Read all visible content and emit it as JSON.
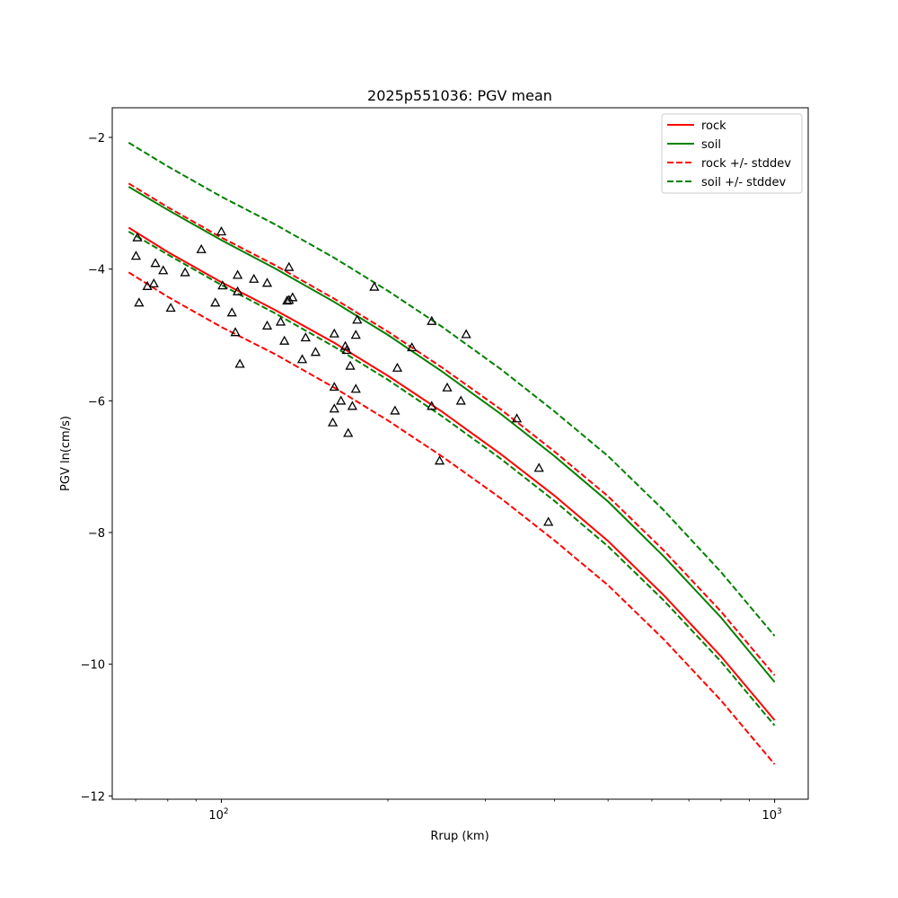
{
  "chart_data": {
    "type": "scatter",
    "title": "2025p551036: PGV mean",
    "xlabel": "Rrup (km)",
    "ylabel": "PGV ln(cm/s)",
    "xscale": "log",
    "xlim": [
      63.5,
      1150
    ],
    "ylim": [
      -12.05,
      -1.55
    ],
    "x_ticks": [
      {
        "value": 100,
        "base": "10",
        "exp": "2"
      },
      {
        "value": 1000,
        "base": "10",
        "exp": "3"
      }
    ],
    "y_ticks": [
      {
        "value": -2,
        "label": "−2"
      },
      {
        "value": -4,
        "label": "−4"
      },
      {
        "value": -6,
        "label": "−6"
      },
      {
        "value": -8,
        "label": "−8"
      },
      {
        "value": -10,
        "label": "−10"
      },
      {
        "value": -12,
        "label": "−12"
      }
    ],
    "grid": false,
    "legend_position": "top-right",
    "colors": {
      "rock": "#ff0000",
      "soil": "#008000",
      "points": "#000000"
    },
    "series": [
      {
        "name": "rock",
        "style": "solid",
        "color": "#ff0000",
        "x": [
          68,
          80,
          100,
          125,
          160,
          200,
          250,
          320,
          400,
          500,
          630,
          800,
          1000
        ],
        "y": [
          -3.37,
          -3.74,
          -4.2,
          -4.62,
          -5.12,
          -5.62,
          -6.16,
          -6.81,
          -7.44,
          -8.13,
          -8.95,
          -9.88,
          -10.85
        ]
      },
      {
        "name": "soil",
        "style": "solid",
        "color": "#008000",
        "x": [
          68,
          80,
          100,
          125,
          160,
          200,
          250,
          320,
          400,
          500,
          630,
          800,
          1000
        ],
        "y": [
          -2.75,
          -3.1,
          -3.56,
          -3.99,
          -4.5,
          -5.0,
          -5.55,
          -6.2,
          -6.84,
          -7.53,
          -8.36,
          -9.29,
          -10.27
        ]
      },
      {
        "name": "rock +/- stddev",
        "style": "dashed",
        "color": "#ff0000",
        "x": [
          68,
          80,
          100,
          125,
          160,
          200,
          250,
          320,
          400,
          500,
          630,
          800,
          1000
        ],
        "y": [
          -2.7,
          -3.06,
          -3.52,
          -3.94,
          -4.45,
          -4.95,
          -5.49,
          -6.13,
          -6.77,
          -7.45,
          -8.27,
          -9.2,
          -10.17
        ]
      },
      {
        "name": "rock +/- stddev lower",
        "style": "dashed",
        "color": "#ff0000",
        "x": [
          68,
          80,
          100,
          125,
          160,
          200,
          250,
          320,
          400,
          500,
          630,
          800,
          1000
        ],
        "y": [
          -4.05,
          -4.42,
          -4.88,
          -5.29,
          -5.8,
          -6.3,
          -6.84,
          -7.48,
          -8.12,
          -8.8,
          -9.62,
          -10.55,
          -11.52
        ]
      },
      {
        "name": "soil +/- stddev",
        "style": "dashed",
        "color": "#008000",
        "x": [
          68,
          80,
          100,
          125,
          160,
          200,
          250,
          320,
          400,
          500,
          630,
          800,
          1000
        ],
        "y": [
          -2.08,
          -2.44,
          -2.9,
          -3.32,
          -3.83,
          -4.33,
          -4.87,
          -5.52,
          -6.16,
          -6.84,
          -7.66,
          -8.6,
          -9.57
        ]
      },
      {
        "name": "soil +/- stddev lower",
        "style": "dashed",
        "color": "#008000",
        "x": [
          68,
          80,
          100,
          125,
          160,
          200,
          250,
          320,
          400,
          500,
          630,
          800,
          1000
        ],
        "y": [
          -3.43,
          -3.78,
          -4.24,
          -4.67,
          -5.18,
          -5.68,
          -6.23,
          -6.88,
          -7.52,
          -8.21,
          -9.03,
          -9.96,
          -10.93
        ]
      }
    ],
    "legend": [
      {
        "label": "rock",
        "style": "solid",
        "color": "#ff0000"
      },
      {
        "label": "soil",
        "style": "solid",
        "color": "#008000"
      },
      {
        "label": "rock +/- stddev",
        "style": "dashed",
        "color": "#ff0000"
      },
      {
        "label": "soil +/- stddev",
        "style": "dashed",
        "color": "#008000"
      }
    ],
    "points": [
      {
        "x": 70.5,
        "y": -3.52
      },
      {
        "x": 70.1,
        "y": -3.8
      },
      {
        "x": 71.0,
        "y": -4.51
      },
      {
        "x": 73.5,
        "y": -4.26
      },
      {
        "x": 75.5,
        "y": -4.22
      },
      {
        "x": 76.0,
        "y": -3.91
      },
      {
        "x": 78.5,
        "y": -4.02
      },
      {
        "x": 81.0,
        "y": -4.59
      },
      {
        "x": 86.0,
        "y": -4.05
      },
      {
        "x": 92.0,
        "y": -3.7
      },
      {
        "x": 97.5,
        "y": -4.51
      },
      {
        "x": 100.0,
        "y": -3.43
      },
      {
        "x": 100.5,
        "y": -4.25
      },
      {
        "x": 104.5,
        "y": -4.66
      },
      {
        "x": 106.0,
        "y": -4.96
      },
      {
        "x": 107.0,
        "y": -4.34
      },
      {
        "x": 107.0,
        "y": -4.09
      },
      {
        "x": 108.0,
        "y": -5.44
      },
      {
        "x": 114.5,
        "y": -4.15
      },
      {
        "x": 121.0,
        "y": -4.21
      },
      {
        "x": 121.0,
        "y": -4.86
      },
      {
        "x": 128.0,
        "y": -4.8
      },
      {
        "x": 130.0,
        "y": -5.09
      },
      {
        "x": 131.5,
        "y": -4.48
      },
      {
        "x": 132.5,
        "y": -4.47
      },
      {
        "x": 132.5,
        "y": -3.97
      },
      {
        "x": 134.5,
        "y": -4.43
      },
      {
        "x": 140.0,
        "y": -5.37
      },
      {
        "x": 142.0,
        "y": -5.04
      },
      {
        "x": 148.0,
        "y": -5.26
      },
      {
        "x": 159.0,
        "y": -6.33
      },
      {
        "x": 160.0,
        "y": -5.79
      },
      {
        "x": 160.0,
        "y": -6.12
      },
      {
        "x": 160.0,
        "y": -4.98
      },
      {
        "x": 164.5,
        "y": -6.0
      },
      {
        "x": 167.5,
        "y": -5.17
      },
      {
        "x": 168.5,
        "y": -5.23
      },
      {
        "x": 169.5,
        "y": -6.49
      },
      {
        "x": 171.0,
        "y": -5.47
      },
      {
        "x": 172.5,
        "y": -6.08
      },
      {
        "x": 175.0,
        "y": -5.82
      },
      {
        "x": 175.0,
        "y": -5.0
      },
      {
        "x": 176.0,
        "y": -4.77
      },
      {
        "x": 189.0,
        "y": -4.27
      },
      {
        "x": 206.0,
        "y": -6.15
      },
      {
        "x": 208.0,
        "y": -5.5
      },
      {
        "x": 221.0,
        "y": -5.19
      },
      {
        "x": 240.0,
        "y": -4.79
      },
      {
        "x": 240.0,
        "y": -6.08
      },
      {
        "x": 248.0,
        "y": -6.91
      },
      {
        "x": 256.0,
        "y": -5.8
      },
      {
        "x": 271.0,
        "y": -6.0
      },
      {
        "x": 277.0,
        "y": -4.99
      },
      {
        "x": 342.0,
        "y": -6.27
      },
      {
        "x": 375.0,
        "y": -7.02
      },
      {
        "x": 390.0,
        "y": -7.84
      }
    ]
  }
}
